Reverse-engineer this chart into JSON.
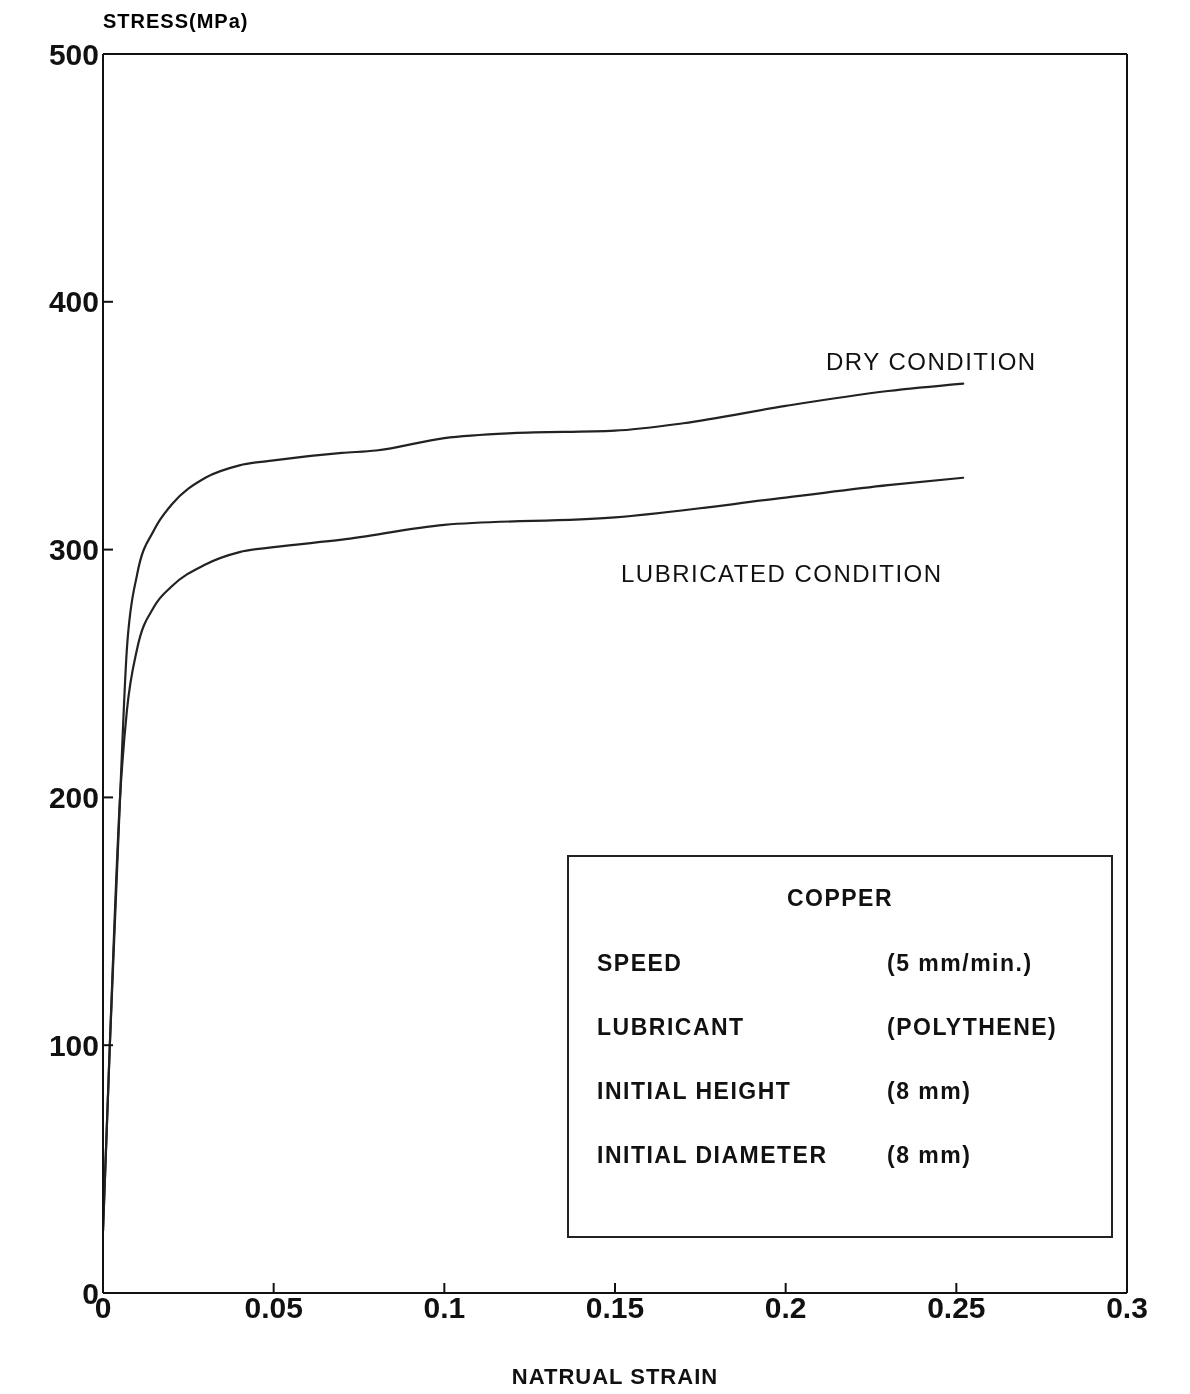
{
  "chart_data": {
    "type": "line",
    "xlabel": "NATRUAL STRAIN",
    "ylabel": "STRESS(MPa)",
    "xlim": [
      0,
      0.3
    ],
    "xticks": [
      0,
      0.05,
      0.1,
      0.15,
      0.2,
      0.25,
      0.3
    ],
    "ylim": [
      0,
      500
    ],
    "yticks": [
      0,
      100,
      200,
      300,
      400,
      500
    ],
    "marker": "none",
    "line_style": "solid",
    "series": [
      {
        "color": "#222222",
        "x": [
          0,
          0.002,
          0.005,
          0.007,
          0.01,
          0.015,
          0.02,
          0.03,
          0.04,
          0.05,
          0.07,
          0.08,
          0.1,
          0.12,
          0.15,
          0.17,
          0.2,
          0.23,
          0.252
        ],
        "values": [
          25,
          100,
          200,
          260,
          290,
          308,
          318,
          329,
          334,
          336,
          339,
          340,
          345,
          347,
          348,
          351,
          358,
          364,
          367
        ]
      },
      {
        "color": "#222222",
        "x": [
          0,
          0.002,
          0.005,
          0.007,
          0.01,
          0.015,
          0.02,
          0.03,
          0.04,
          0.05,
          0.07,
          0.1,
          0.15,
          0.2,
          0.23,
          0.252
        ],
        "values": [
          25,
          100,
          200,
          235,
          260,
          277,
          285,
          294,
          299,
          301,
          304,
          310,
          313,
          321,
          326,
          329
        ]
      }
    ],
    "annotations": [
      "DRY CONDITION",
      "LUBRICATED CONDITION",
      "COPPER",
      "SPEED",
      "(5 mm/min.)",
      "LUBRICANT",
      "(POLYTHENE)",
      "INITIAL HEIGHT",
      "(8 mm)",
      "INITIAL DIAMETER",
      "(8 mm)"
    ]
  }
}
